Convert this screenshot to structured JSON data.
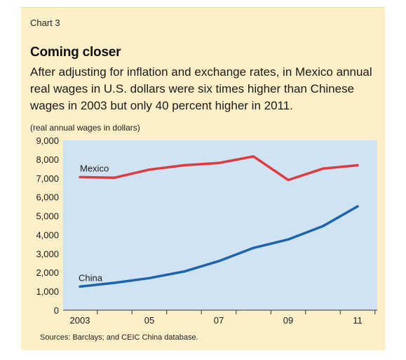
{
  "header": {
    "chart_number": "Chart 3",
    "title": "Coming closer",
    "subtitle": "After adjusting for inflation and exchange rates, in Mexico annual real wages in U.S. dollars were six times higher than Chinese wages in 2003 but only 40 percent higher in 2011.",
    "unit_note": "(real annual wages in dollars)"
  },
  "footer": {
    "sources": "Sources: Barclays; and CEIC China database."
  },
  "colors": {
    "panel": "#fdf0c8",
    "plot_bg": "#cfe3f2",
    "mexico": "#e03a3e",
    "china": "#1e63ad"
  },
  "chart_data": {
    "type": "line",
    "x": [
      2003,
      2004,
      2005,
      2006,
      2007,
      2008,
      2009,
      2010,
      2011
    ],
    "x_tick_values": [
      2003,
      2005,
      2007,
      2009,
      2011
    ],
    "x_tick_labels": [
      "2003",
      "05",
      "07",
      "09",
      "11"
    ],
    "xlim": [
      2003,
      2011
    ],
    "y_ticks": [
      0,
      1000,
      2000,
      3000,
      4000,
      5000,
      6000,
      7000,
      8000,
      9000
    ],
    "y_tick_labels": [
      "0",
      "1,000",
      "2,000",
      "3,000",
      "4,000",
      "5,000",
      "6,000",
      "7,000",
      "8,000",
      "9,000"
    ],
    "ylim": [
      0,
      9000
    ],
    "grid": false,
    "series": [
      {
        "name": "Mexico",
        "color": "#e03a3e",
        "values": [
          7050,
          7020,
          7450,
          7680,
          7800,
          8150,
          6900,
          7500,
          7680
        ]
      },
      {
        "name": "China",
        "color": "#1e63ad",
        "values": [
          1250,
          1450,
          1700,
          2050,
          2600,
          3300,
          3750,
          4450,
          5500
        ]
      }
    ]
  }
}
